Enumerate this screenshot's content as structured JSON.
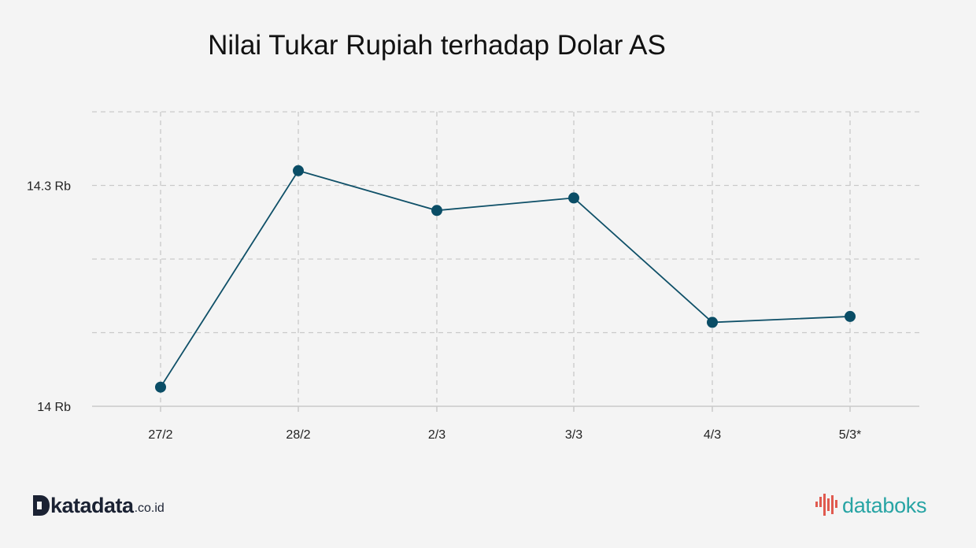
{
  "chart_data": {
    "type": "line",
    "title": "Nilai Tukar Rupiah terhadap Dolar AS",
    "categories": [
      "27/2",
      "28/2",
      "2/3",
      "3/3",
      "4/3",
      "5/3*"
    ],
    "series": [
      {
        "values": [
          14026,
          14320,
          14266,
          14283,
          14114,
          14122
        ]
      }
    ],
    "ylim": [
      14000,
      14400
    ],
    "yticks": [
      {
        "value": 14000,
        "label": "14 Rb"
      },
      {
        "value": 14300,
        "label": "14.3 Rb"
      }
    ],
    "gridlines_y": [
      14100,
      14200,
      14300,
      14400
    ],
    "grid": true,
    "colors": {
      "line": "#0f5068",
      "marker": "#0a4d66",
      "grid": "#c9c9c9",
      "axis": "#c9c9c9"
    }
  },
  "branding": {
    "left_logo": {
      "word": "katadata",
      "domain": ".co.id",
      "icon": "katadata-d-icon"
    },
    "right_logo": {
      "word": "databoks",
      "icon": "databoks-bars-icon"
    }
  }
}
